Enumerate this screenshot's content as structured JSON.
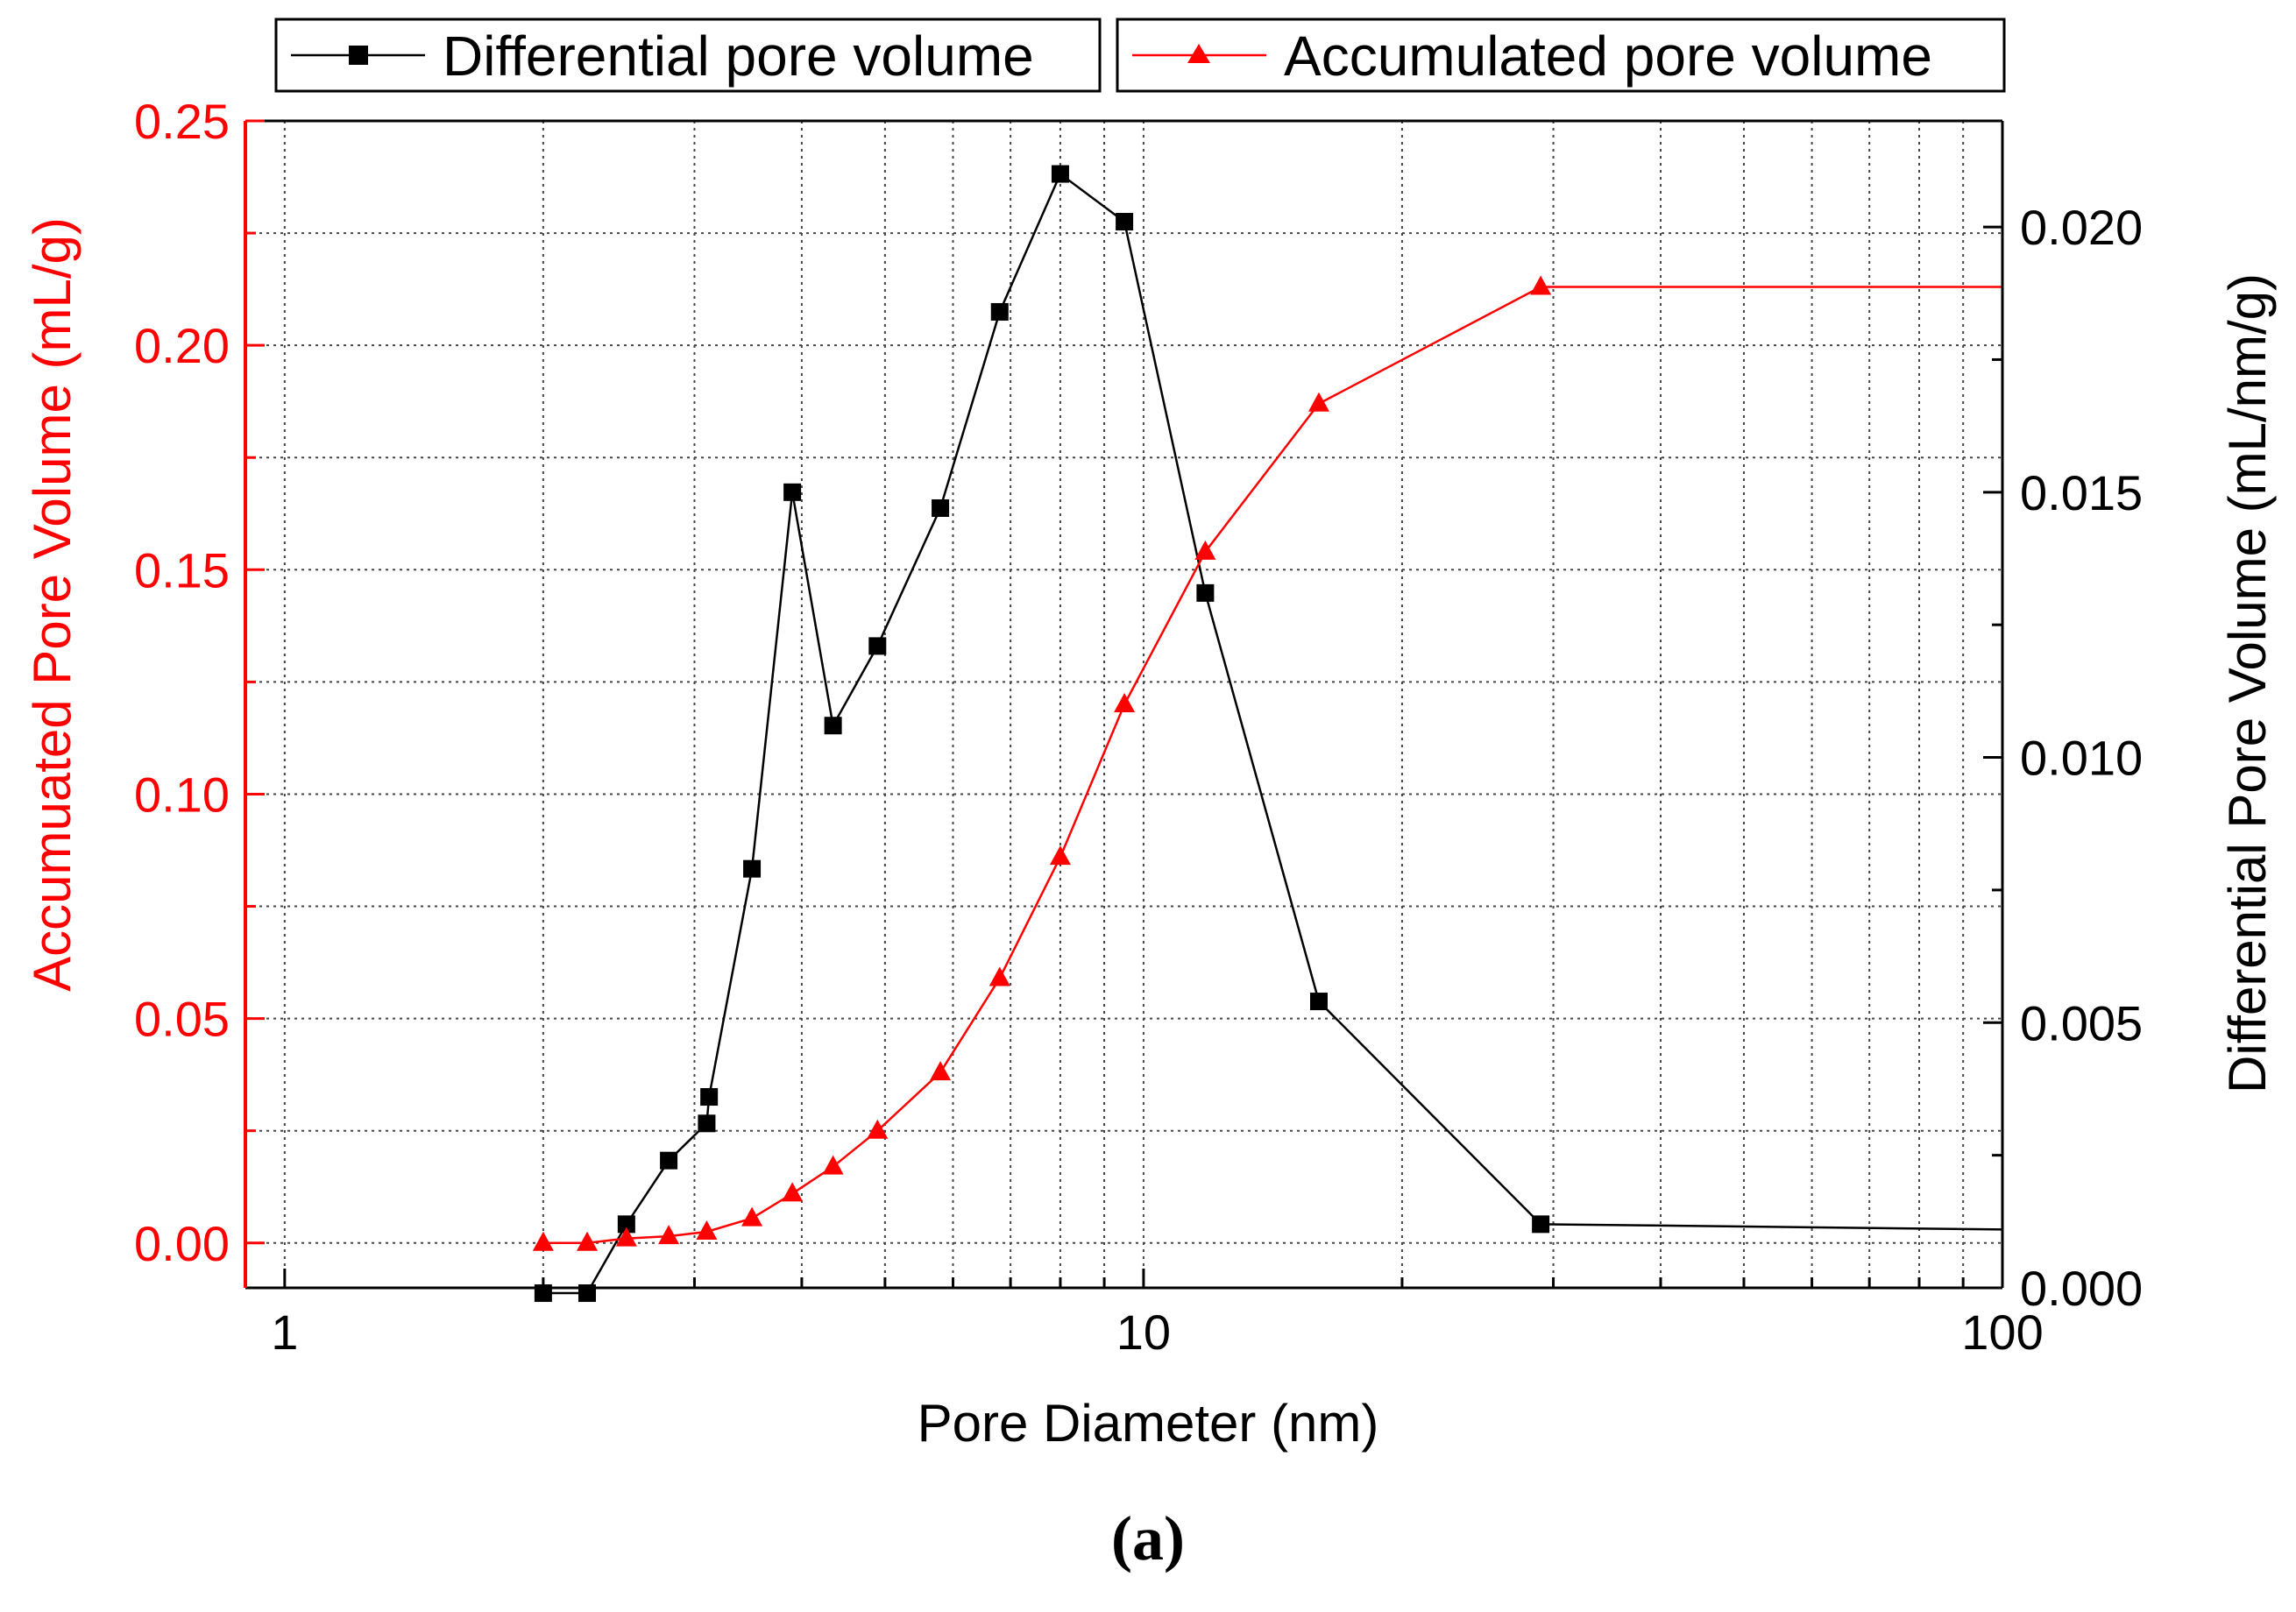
{
  "caption": "(a)",
  "chart_data": {
    "type": "line",
    "xlabel": "Pore Diameter (nm)",
    "xscale": "log",
    "xlim": [
      0.9,
      100
    ],
    "xticks": [
      1,
      10,
      100
    ],
    "xtick_labels": [
      "1",
      "10",
      "100"
    ],
    "left_axis": {
      "label": "Accumuated Pore Volume (mL/g)",
      "color": "#ff0000",
      "ylim": [
        -0.01,
        0.25
      ],
      "ticks": [
        0.0,
        0.05,
        0.1,
        0.15,
        0.2,
        0.25
      ],
      "tick_labels": [
        "0.00",
        "0.05",
        "0.10",
        "0.15",
        "0.20",
        "0.25"
      ]
    },
    "right_axis": {
      "label": "Differential Pore Volume (mL/nm/g)",
      "color": "#000000",
      "ylim": [
        0.0,
        0.022
      ],
      "ticks": [
        0.0,
        0.005,
        0.01,
        0.015,
        0.02
      ],
      "tick_labels": [
        "0.000",
        "0.005",
        "0.010",
        "0.015",
        "0.020"
      ]
    },
    "grid": true,
    "legend": {
      "position": "top",
      "entries": [
        "Differential pore volume",
        "Accumulated pore volume"
      ]
    },
    "series": [
      {
        "name": "Differential pore volume",
        "axis": "right",
        "color": "#000000",
        "marker": "square",
        "x": [
          2.0,
          2.25,
          2.5,
          2.8,
          3.1,
          3.12,
          3.5,
          3.9,
          4.35,
          4.9,
          5.8,
          6.8,
          8.0,
          9.5,
          11.8,
          16.0,
          29.0
        ],
        "y": [
          -0.0001,
          -0.0001,
          0.0012,
          0.0024,
          0.0031,
          0.0036,
          0.0079,
          0.015,
          0.0106,
          0.0121,
          0.0147,
          0.0184,
          0.021,
          0.0201,
          0.0131,
          0.0054,
          0.0012
        ],
        "line_extends_to": {
          "x": 100,
          "y": 0.0011
        }
      },
      {
        "name": "Accumulated pore volume",
        "axis": "left",
        "color": "#ff0000",
        "marker": "triangle",
        "x": [
          2.0,
          2.25,
          2.5,
          2.8,
          3.1,
          3.5,
          3.9,
          4.35,
          4.9,
          5.8,
          6.8,
          8.0,
          9.5,
          11.8,
          16.0,
          29.0
        ],
        "y": [
          0.0,
          0.0,
          0.001,
          0.0015,
          0.0025,
          0.0055,
          0.011,
          0.017,
          0.025,
          0.038,
          0.059,
          0.086,
          0.12,
          0.154,
          0.187,
          0.213
        ],
        "line_extends_to": {
          "x": 100,
          "y": 0.213
        }
      }
    ]
  }
}
